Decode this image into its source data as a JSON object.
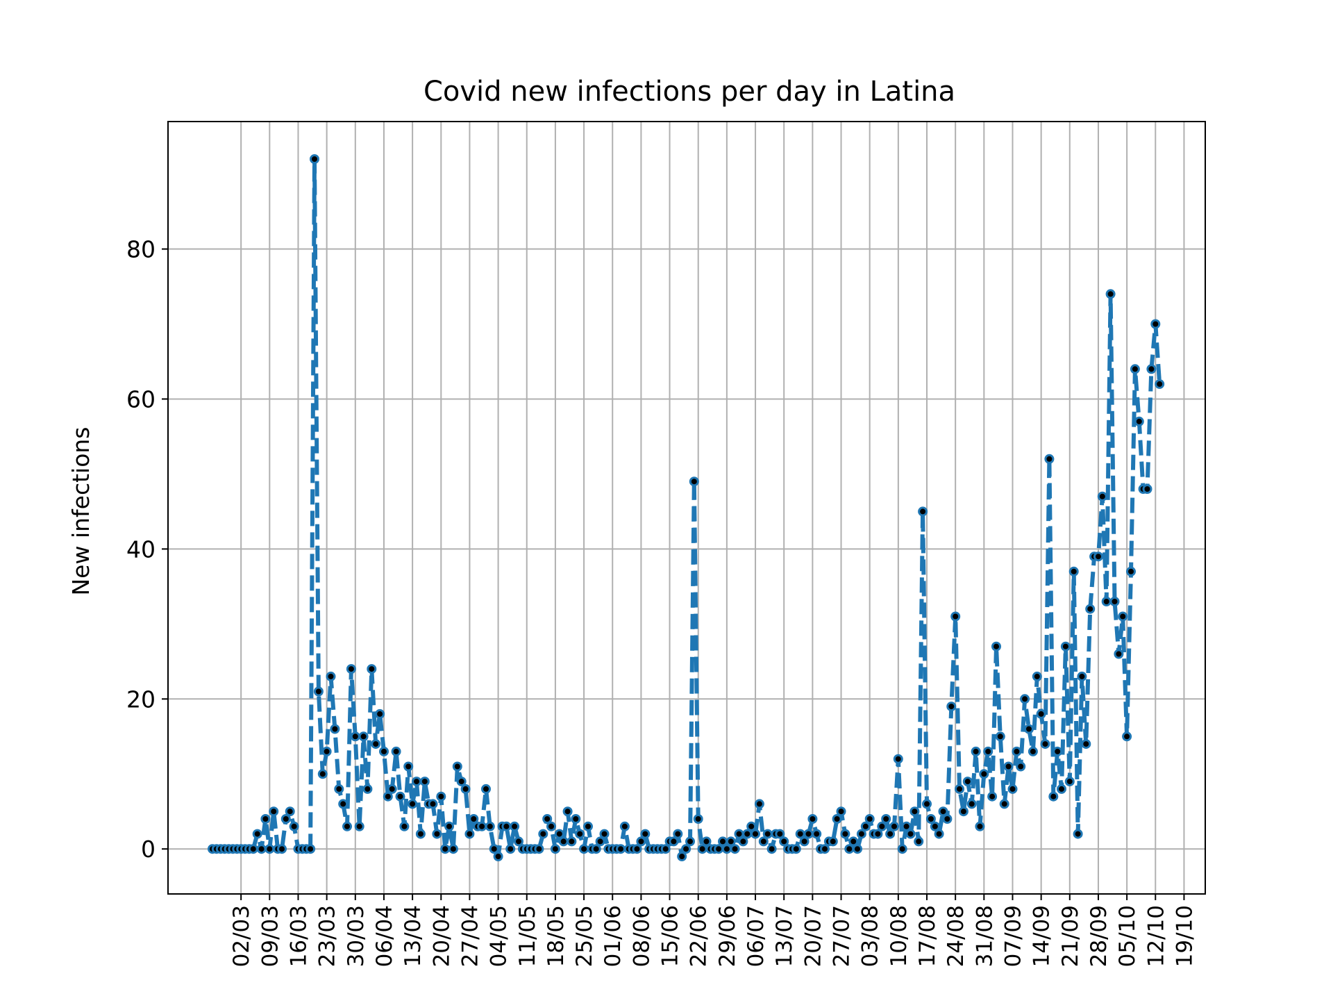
{
  "chart_data": {
    "type": "line",
    "title": "Covid new infections per day in Latina",
    "xlabel": "",
    "ylabel": "New infections",
    "ylim": [
      -6,
      97
    ],
    "yticks": [
      0,
      20,
      40,
      60,
      80
    ],
    "grid": true,
    "line_style": "dashed",
    "colors": {
      "line": "#1f77b4",
      "marker": "#000000",
      "grid": "#b0b0b0"
    },
    "x_start": "24/02",
    "x_end": "20/10",
    "xticks": [
      "02/03",
      "09/03",
      "16/03",
      "23/03",
      "30/03",
      "06/04",
      "13/04",
      "20/04",
      "27/04",
      "04/05",
      "11/05",
      "18/05",
      "25/05",
      "01/06",
      "08/06",
      "15/06",
      "22/06",
      "29/06",
      "06/07",
      "13/07",
      "20/07",
      "27/07",
      "03/08",
      "10/08",
      "17/08",
      "24/08",
      "31/08",
      "07/09",
      "14/09",
      "21/09",
      "28/09",
      "05/10",
      "12/10",
      "19/10"
    ],
    "series": [
      {
        "values": [
          0,
          0,
          0,
          0,
          0,
          0,
          0,
          0,
          0,
          0,
          0,
          2,
          0,
          4,
          0,
          5,
          0,
          0,
          4,
          5,
          3,
          0,
          0,
          0,
          0,
          92,
          21,
          10,
          13,
          23,
          16,
          8,
          6,
          3,
          24,
          15,
          3,
          15,
          8,
          24,
          14,
          18,
          13,
          7,
          8,
          13,
          7,
          3,
          11,
          6,
          9,
          2,
          9,
          6,
          6,
          2,
          7,
          0,
          3,
          0,
          11,
          9,
          8,
          2,
          4,
          3,
          3,
          8,
          3,
          0,
          -1,
          3,
          3,
          0,
          3,
          1,
          0,
          0,
          0,
          0,
          0,
          2,
          4,
          3,
          0,
          2,
          1,
          5,
          1,
          4,
          2,
          0,
          3,
          0,
          0,
          1,
          2,
          0,
          0,
          0,
          0,
          3,
          0,
          0,
          0,
          1,
          2,
          0,
          0,
          0,
          0,
          0,
          1,
          1,
          2,
          -1,
          0,
          1,
          49,
          4,
          0,
          1,
          0,
          0,
          0,
          1,
          0,
          1,
          0,
          2,
          1,
          2,
          3,
          2,
          6,
          1,
          2,
          0,
          2,
          2,
          1,
          0,
          0,
          0,
          2,
          1,
          2,
          4,
          2,
          0,
          0,
          1,
          1,
          4,
          5,
          2,
          0,
          1,
          0,
          2,
          3,
          4,
          2,
          2,
          3,
          4,
          2,
          3,
          12,
          0,
          3,
          2,
          5,
          1,
          45,
          6,
          4,
          3,
          2,
          5,
          4,
          19,
          31,
          8,
          5,
          9,
          6,
          13,
          3,
          10,
          13,
          7,
          27,
          15,
          6,
          11,
          8,
          13,
          11,
          20,
          16,
          13,
          23,
          18,
          14,
          52,
          7,
          13,
          8,
          27,
          9,
          37,
          2,
          23,
          14,
          32,
          39,
          39,
          47,
          33,
          74,
          33,
          26,
          31,
          15,
          37,
          64,
          57,
          48,
          48,
          64,
          70,
          62
        ]
      }
    ]
  }
}
